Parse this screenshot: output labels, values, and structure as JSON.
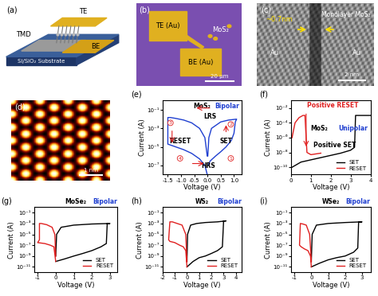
{
  "panels": {
    "a": {
      "label": "(a)",
      "texts": {
        "top_electrode": "TE",
        "bottom_electrode": "BE",
        "material": "TMD",
        "substrate": "Si/SiO₂ Substrate"
      }
    },
    "b": {
      "label": "(b)",
      "texts": {
        "top_electrode": "TE (Au)",
        "bottom_electrode": "BE (Au)",
        "material": "MoS₂",
        "scale_bar": "20 μm"
      }
    },
    "c": {
      "label": "(c)",
      "texts": {
        "layer": "Monolayer MoS₂",
        "thickness": "~0.7nm",
        "left": "Au",
        "right": "Au",
        "scale_bar": "2 nm"
      }
    },
    "d": {
      "label": "(d)",
      "texts": {
        "scale_bar": "1 nm"
      }
    }
  },
  "chart_data": [
    {
      "panel": "(e)",
      "type": "line",
      "log": "y",
      "xlabel": "Voltage (V)",
      "ylabel": "Current (A)",
      "xlim": [
        -1.7,
        1.3
      ],
      "xticks": [
        -1.5,
        -1.0,
        -0.5,
        0.0,
        0.5,
        1.0
      ],
      "ylim": [
        1e-08,
        1
      ],
      "yticks": [
        {
          "value": 0.1,
          "label": "10⁻¹"
        },
        {
          "value": 0.001,
          "label": "10⁻³"
        },
        {
          "value": 1e-05,
          "label": "10⁻⁵"
        },
        {
          "value": 1e-07,
          "label": "10⁻⁷"
        }
      ],
      "annotations": [
        "MoS₂",
        "Bipolar",
        "LRS",
        "HRS",
        "SET",
        "RESET",
        "1",
        "2",
        "3",
        "4"
      ],
      "series": [
        {
          "color": "#1f3fd0",
          "x": [
            0.02,
            0.1,
            0.3,
            0.5,
            0.7,
            0.9,
            1.0,
            1.05,
            1.1,
            0.8,
            0.5,
            0.3,
            0.15,
            0.05,
            0.01,
            -0.01,
            -0.1,
            -0.3,
            -0.6,
            -0.9,
            -1.2,
            -1.4,
            -1.5,
            -1.5,
            -1.2,
            -0.9,
            -0.6,
            -0.3,
            -0.1,
            -0.01
          ],
          "values": [
            1e-07,
            3e-07,
            1e-06,
            3e-06,
            1e-05,
            5e-05,
            0.0003,
            0.005,
            0.01,
            0.008,
            0.005,
            0.002,
            0.001,
            0.0001,
            1e-06,
            1e-06,
            0.0001,
            0.001,
            0.004,
            0.008,
            0.012,
            0.015,
            0.015,
            2e-05,
            1e-05,
            5e-06,
            2e-06,
            5e-07,
            1e-07,
            1e-08
          ]
        }
      ]
    },
    {
      "panel": "(f)",
      "type": "line",
      "log": "y",
      "xlabel": "Voltage (V)",
      "ylabel": "Current (A)",
      "legend": "lower right",
      "xlim": [
        0,
        4
      ],
      "xticks": [
        0,
        1,
        2,
        3,
        4
      ],
      "ylim": [
        1e-11,
        0.1
      ],
      "yticks": [
        {
          "value": 1e-10,
          "label": "10⁻¹⁰"
        },
        {
          "value": 1e-08,
          "label": "10⁻⁸"
        },
        {
          "value": 1e-06,
          "label": "10⁻⁶"
        },
        {
          "value": 0.0001,
          "label": "10⁻⁴"
        },
        {
          "value": 0.01,
          "label": "10⁻²"
        }
      ],
      "annotations": [
        "Positive RESET",
        "Positive SET",
        "MoS₂",
        "Unipolar"
      ],
      "series": [
        {
          "name": "SET",
          "color": "#000000",
          "x": [
            0.05,
            0.5,
            1,
            1.5,
            2,
            2.5,
            3,
            3.2,
            3.25,
            3.6,
            4.0
          ],
          "values": [
            1e-10,
            5e-10,
            1e-09,
            2e-09,
            4e-09,
            8e-09,
            2e-08,
            5e-08,
            0.001,
            0.001,
            0.001
          ]
        },
        {
          "name": "RESET",
          "color": "#e02020",
          "x": [
            0.05,
            0.2,
            0.4,
            0.6,
            0.7,
            0.8,
            1.0,
            1.5
          ],
          "values": [
            1e-06,
            0.0001,
            0.0005,
            0.001,
            0.001,
            1e-08,
            5e-09,
            8e-09
          ]
        }
      ]
    },
    {
      "panel": "(g)",
      "type": "line",
      "log": "y",
      "xlabel": "Voltage (V)",
      "ylabel": "Current (A)",
      "legend": "lower right",
      "xlim": [
        -1.2,
        3.4
      ],
      "xticks": [
        -1,
        0,
        1,
        2,
        3
      ],
      "ylim": [
        1e-12,
        1
      ],
      "yticks": [
        {
          "value": 0.1,
          "label": "10⁻¹"
        },
        {
          "value": 0.001,
          "label": "10⁻³"
        },
        {
          "value": 1e-05,
          "label": "10⁻⁵"
        },
        {
          "value": 1e-07,
          "label": "10⁻⁷"
        },
        {
          "value": 1e-09,
          "label": "10⁻⁹"
        },
        {
          "value": 1e-11,
          "label": "10⁻¹¹"
        }
      ],
      "annotations": [
        "MoSe₂",
        "Bipolar"
      ],
      "series": [
        {
          "name": "SET",
          "color": "#000000",
          "x": [
            0,
            0.5,
            1,
            1.5,
            2,
            2.5,
            2.8,
            2.85,
            3,
            2.0,
            1.0,
            0.3,
            0.05,
            0.0
          ],
          "values": [
            1e-10,
            3e-10,
            1e-09,
            3e-09,
            1e-08,
            5e-08,
            2e-07,
            0.001,
            0.001,
            0.0008,
            0.0005,
            0.0002,
            1e-05,
            1e-09
          ]
        },
        {
          "name": "RESET",
          "color": "#e02020",
          "x": [
            0,
            -0.05,
            -0.2,
            -0.5,
            -0.8,
            -0.9,
            -0.9,
            -1.0,
            -0.6,
            -0.3,
            -0.1,
            0
          ],
          "values": [
            1e-09,
            1e-05,
            0.0002,
            0.0006,
            0.001,
            0.001,
            1e-06,
            3e-07,
            2e-07,
            1e-07,
            5e-08,
            1e-10
          ]
        }
      ]
    },
    {
      "panel": "(h)",
      "type": "line",
      "log": "y",
      "xlabel": "Voltage (V)",
      "ylabel": "Current (A)",
      "legend": "lower right",
      "xlim": [
        -2,
        4.5
      ],
      "xticks": [
        -2,
        -1,
        0,
        1,
        2,
        3,
        4
      ],
      "ylim": [
        1e-12,
        1
      ],
      "yticks": [
        {
          "value": 0.1,
          "label": "10⁻¹"
        },
        {
          "value": 0.001,
          "label": "10⁻³"
        },
        {
          "value": 1e-05,
          "label": "10⁻⁵"
        },
        {
          "value": 1e-07,
          "label": "10⁻⁷"
        },
        {
          "value": 1e-09,
          "label": "10⁻⁹"
        },
        {
          "value": 1e-11,
          "label": "10⁻¹¹"
        }
      ],
      "annotations": [
        "WS₂",
        "Bipolar"
      ],
      "series": [
        {
          "name": "SET",
          "color": "#000000",
          "x": [
            0,
            0.5,
            1,
            1.5,
            2,
            2.5,
            2.9,
            3.0,
            3.2,
            2.5,
            1.5,
            0.8,
            0.3,
            0.05,
            0
          ],
          "values": [
            1e-11,
            1e-10,
            5e-10,
            1e-09,
            3e-09,
            1e-08,
            5e-08,
            0.003,
            0.003,
            0.002,
            0.0015,
            0.001,
            0.0005,
            1e-05,
            1e-10
          ]
        },
        {
          "name": "RESET",
          "color": "#e02020",
          "x": [
            0,
            -0.1,
            -0.4,
            -0.8,
            -1.2,
            -1.4,
            -1.5,
            -1.4,
            -1.0,
            -0.6,
            -0.3,
            -0.1,
            0
          ],
          "values": [
            1e-10,
            1e-05,
            0.0005,
            0.001,
            0.002,
            0.002,
            1e-06,
            5e-07,
            3e-07,
            1e-07,
            5e-08,
            1e-08,
            1e-11
          ]
        }
      ]
    },
    {
      "panel": "(i)",
      "type": "line",
      "log": "y",
      "xlabel": "Voltage (V)",
      "ylabel": "Current (A)",
      "legend": "lower right",
      "xlim": [
        -1.2,
        3.5
      ],
      "xticks": [
        -1,
        0,
        1,
        2,
        3
      ],
      "ylim": [
        1e-12,
        1
      ],
      "yticks": [
        {
          "value": 0.1,
          "label": "10⁻¹"
        },
        {
          "value": 0.001,
          "label": "10⁻³"
        },
        {
          "value": 1e-05,
          "label": "10⁻⁵"
        },
        {
          "value": 1e-07,
          "label": "10⁻⁷"
        },
        {
          "value": 1e-09,
          "label": "10⁻⁹"
        },
        {
          "value": 1e-11,
          "label": "10⁻¹¹"
        }
      ],
      "annotations": [
        "WSe₂",
        "Bipolar"
      ],
      "series": [
        {
          "name": "SET",
          "color": "#000000",
          "x": [
            0,
            0.5,
            1,
            1.5,
            2,
            2.5,
            2.75,
            2.8,
            3.0,
            2.0,
            1.0,
            0.3,
            0.05,
            0
          ],
          "values": [
            1e-11,
            5e-11,
            2e-10,
            5e-10,
            1e-09,
            5e-09,
            3e-08,
            0.002,
            0.002,
            0.0015,
            0.001,
            0.0005,
            1e-05,
            1e-10
          ]
        },
        {
          "name": "RESET",
          "color": "#e02020",
          "x": [
            0,
            -0.1,
            -0.3,
            -0.5,
            -0.65,
            -0.7,
            -0.6,
            -0.4,
            -0.2,
            -0.05,
            0
          ],
          "values": [
            1e-10,
            1e-05,
            0.0005,
            0.0008,
            0.001,
            1e-07,
            5e-08,
            2e-08,
            1e-08,
            1e-09,
            1e-11
          ]
        }
      ]
    }
  ]
}
